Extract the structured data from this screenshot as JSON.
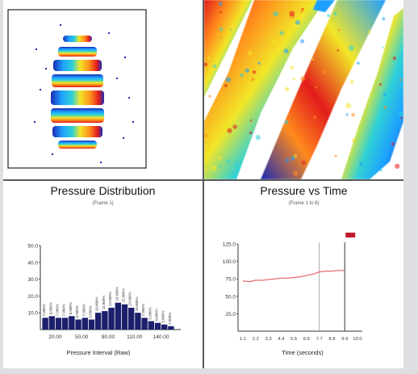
{
  "chart_data": [
    {
      "type": "heatmap",
      "title": "",
      "colorscale": [
        "#1a2bb5",
        "#1ea0ff",
        "#2fd1d6",
        "#f2e628",
        "#ff8a1c",
        "#e21c1c"
      ]
    },
    {
      "type": "heatmap",
      "title": "",
      "colorscale": [
        "#1a2bb5",
        "#1ea0ff",
        "#2fd1d6",
        "#f2e628",
        "#ff8a1c",
        "#e21c1c"
      ]
    },
    {
      "type": "bar",
      "title": "Pressure Distribution",
      "subtitle": "(Frame 1)",
      "xlabel": "Pressure Interval (Raw)",
      "ylabel": "",
      "ylim": [
        0,
        50
      ],
      "yticks": [
        "50.0",
        "40.0",
        "30.0",
        "20.0",
        "10.0"
      ],
      "xticks": [
        "20.00",
        "50.00",
        "80.00",
        "110.00",
        "140.00"
      ],
      "values": [
        7,
        8,
        7,
        7,
        8,
        6,
        7,
        6,
        10,
        11,
        13,
        16,
        15,
        13,
        10,
        7,
        5,
        4,
        3,
        2
      ],
      "bar_color": "#1c1f6b",
      "grid": false
    },
    {
      "type": "line",
      "title": "Pressure vs Time",
      "subtitle": "(Frame 1 to 8)",
      "xlabel": "Time (seconds)",
      "ylabel": "",
      "ylim": [
        0,
        125
      ],
      "yticks": [
        "125.0",
        "100.0",
        "75.0",
        "50.0",
        "25.0"
      ],
      "xticks": [
        "1.1",
        "2.2",
        "3.3",
        "4.4",
        "5.5",
        "6.6",
        "7.7",
        "8.8",
        "9.9",
        "10.0"
      ],
      "x": [
        1.1,
        1.7,
        2.2,
        2.8,
        3.3,
        3.9,
        4.4,
        5.0,
        5.5,
        6.1,
        6.6,
        7.2,
        7.7,
        8.3,
        8.8,
        9.4,
        9.9
      ],
      "y": [
        72,
        71,
        73,
        73,
        74,
        75,
        76,
        76,
        77,
        78,
        80,
        82,
        85,
        86,
        86,
        87,
        87
      ],
      "line_color": "#e8787a",
      "markers": [
        {
          "x": 7.7
        },
        {
          "x": 9.9
        }
      ],
      "indicator_color": "#c0182b",
      "grid": false
    }
  ]
}
